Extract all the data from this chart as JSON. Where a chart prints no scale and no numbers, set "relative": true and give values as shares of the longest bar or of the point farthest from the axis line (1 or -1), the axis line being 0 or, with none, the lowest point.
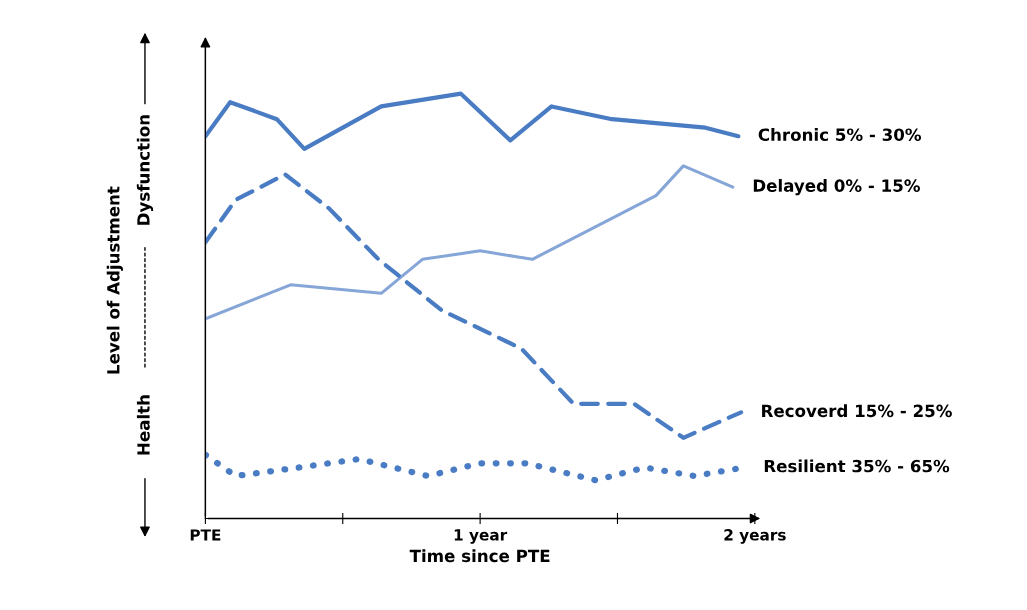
{
  "chart_data": {
    "type": "line",
    "relative": true,
    "xlabel": "Time since PTE",
    "ylabel": "Level of Adjustment",
    "annotations": [
      "Health",
      "Dysfunction"
    ],
    "xlim": [
      0,
      2
    ],
    "xticks": [
      {
        "value": 0,
        "label": "PTE"
      },
      {
        "value": 0.5,
        "label": null
      },
      {
        "value": 1,
        "label": "1 year"
      },
      {
        "value": 1.5,
        "label": null
      },
      {
        "value": 2,
        "label": "2 years"
      }
    ],
    "tick_labels": "x",
    "grid": false,
    "legend": false,
    "marker": "none",
    "series": [
      {
        "name": "Chronic 5% - 30%",
        "color": "#4a7cc4",
        "line_style": "solid",
        "x": [
          0,
          0.09,
          0.26,
          0.36,
          0.64,
          0.93,
          1.11,
          1.26,
          1.48,
          1.82,
          1.94
        ],
        "values": [
          0.9,
          0.98,
          0.94,
          0.87,
          0.97,
          1.0,
          0.89,
          0.97,
          0.94,
          0.92,
          0.9
        ]
      },
      {
        "name": "Delayed 0% - 15%",
        "color": "#86a6d8",
        "line_style": "solid",
        "x": [
          0,
          0.31,
          0.64,
          0.79,
          1.0,
          1.19,
          1.64,
          1.74,
          1.92
        ],
        "values": [
          0.47,
          0.55,
          0.53,
          0.61,
          0.63,
          0.61,
          0.76,
          0.83,
          0.78
        ]
      },
      {
        "name": "Recoverd 15% - 25%",
        "color": "#4a7cc4",
        "line_style": "dashed",
        "x": [
          0,
          0.11,
          0.29,
          0.45,
          0.63,
          0.86,
          1.15,
          1.34,
          1.56,
          1.74,
          1.95
        ],
        "values": [
          0.65,
          0.75,
          0.81,
          0.73,
          0.61,
          0.49,
          0.4,
          0.27,
          0.27,
          0.19,
          0.25
        ]
      },
      {
        "name": "Resilient 35% - 65%",
        "color": "#4a7cc4",
        "line_style": "dotted",
        "x": [
          0,
          0.11,
          0.34,
          0.56,
          0.81,
          1.0,
          1.17,
          1.42,
          1.6,
          1.78,
          1.96
        ],
        "values": [
          0.15,
          0.1,
          0.12,
          0.14,
          0.1,
          0.13,
          0.13,
          0.09,
          0.12,
          0.1,
          0.12
        ]
      }
    ]
  }
}
